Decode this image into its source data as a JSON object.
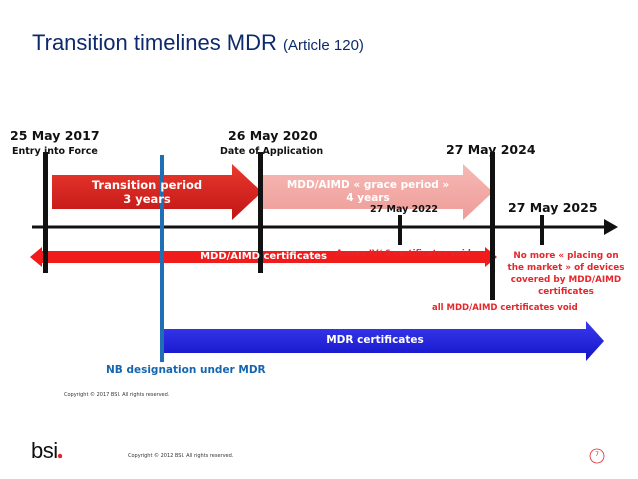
{
  "title": {
    "main": "Transition timelines MDR",
    "sub": "(Article 120)"
  },
  "dates": {
    "d2017": {
      "date": "25 May 2017",
      "label": "Entry into Force"
    },
    "d2020": {
      "date": "26 May 2020",
      "label": "Date of Application"
    },
    "d2024": {
      "date": "27 May 2024"
    },
    "d2022": {
      "date": "27 May 2022"
    },
    "d2025": {
      "date": "27 May 2025"
    }
  },
  "arrows": {
    "transition_line1": "Transition period",
    "transition_line2": "3 years",
    "grace_line1": "MDD/AIMD « grace period »",
    "grace_line2": "4 years",
    "mdd_certificates": "MDD/AIMD certificates",
    "mdr_certificates": "MDR certificates"
  },
  "notes": {
    "annex": "Annex IV/ 6 certificates void",
    "all_void": "all MDD/AIMD certificates void",
    "no_more_1": "No more « placing on",
    "no_more_2": "the market » of devices",
    "no_more_3": "covered by MDD/AIMD",
    "no_more_4": "certificates",
    "nb_designation": "NB designation under MDR"
  },
  "footer": {
    "copyright_top": "Copyright © 2017 BSI. All rights reserved.",
    "copyright_bottom": "Copyright © 2012 BSI. All rights reserved.",
    "logo": "bsi.",
    "page_number": "7"
  },
  "colors": {
    "title": "#0d2a6e",
    "transition_red": "#d41f1f",
    "grace_pink": "#f2a7a7",
    "certificate_red": "#f01b1b",
    "mdr_blue": "#1f1fe0",
    "nb_blue": "#1f6fb5",
    "note_red": "#e5262b"
  }
}
